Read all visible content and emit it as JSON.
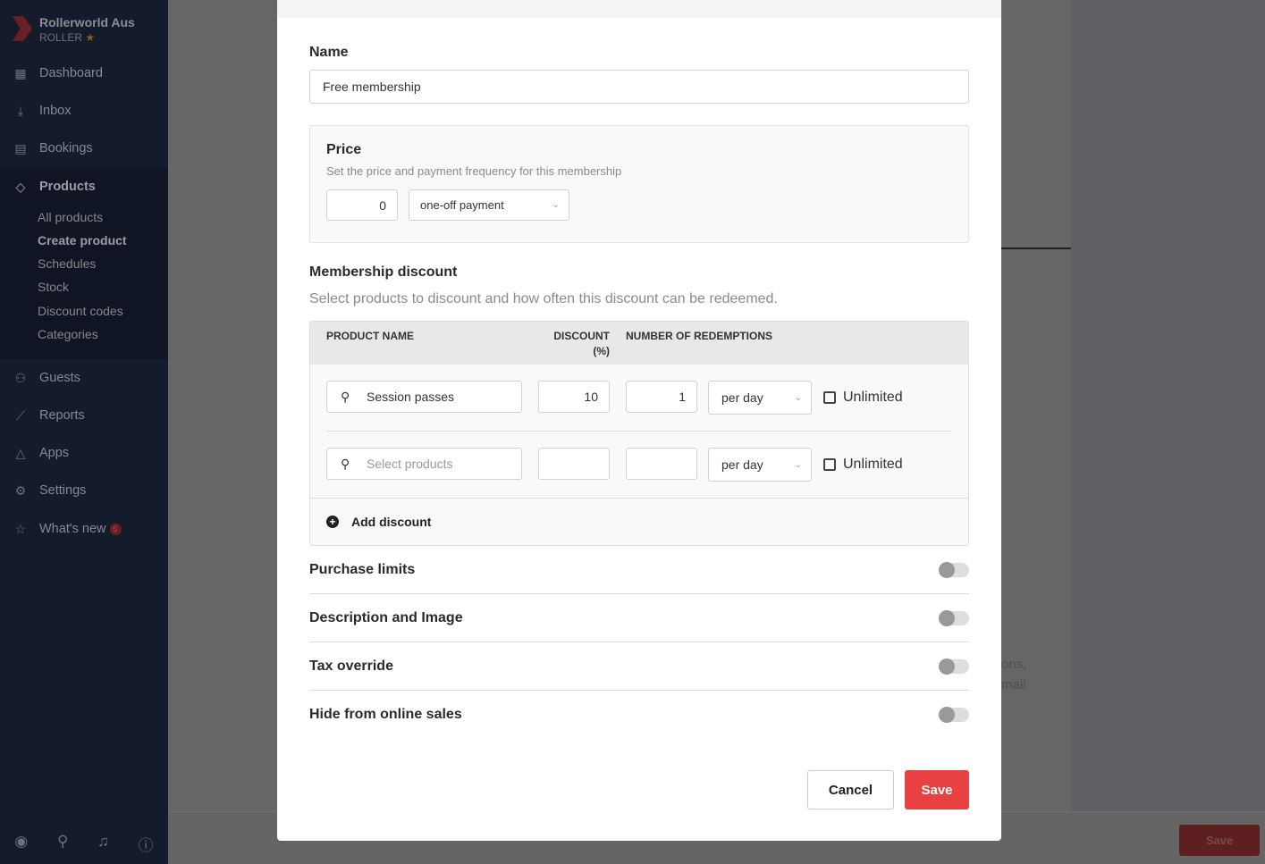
{
  "sidebar": {
    "brand": {
      "name": "Rollerworld Aus",
      "sub": "ROLLER"
    },
    "items": [
      {
        "label": "Dashboard",
        "icon": "dashboard-icon"
      },
      {
        "label": "Inbox",
        "icon": "inbox-icon"
      },
      {
        "label": "Bookings",
        "icon": "calendar-icon"
      },
      {
        "label": "Products",
        "icon": "tag-icon"
      },
      {
        "label": "Guests",
        "icon": "guests-icon"
      },
      {
        "label": "Reports",
        "icon": "chart-line-icon"
      },
      {
        "label": "Apps",
        "icon": "apps-icon"
      },
      {
        "label": "Settings",
        "icon": "gear-icon"
      },
      {
        "label": "What's new",
        "icon": "star-icon",
        "badge": "5"
      }
    ],
    "products_sub": [
      "All products",
      "Create product",
      "Schedules",
      "Stock",
      "Discount codes",
      "Categories"
    ],
    "active_sub": "Create product"
  },
  "background": {
    "save_label": "Save",
    "text_line1": "ons,",
    "text_line2": "mail"
  },
  "modal": {
    "name_label": "Name",
    "name_value": "Free membership",
    "price": {
      "title": "Price",
      "desc": "Set the price and payment frequency for this membership",
      "amount": "0",
      "frequency": "one-off payment"
    },
    "discount": {
      "title": "Membership discount",
      "desc": "Select products to discount and how often this discount can be redeemed.",
      "headers": {
        "product": "PRODUCT NAME",
        "discount": "DISCOUNT",
        "discount_unit": "(%)",
        "redemptions": "NUMBER OF REDEMPTIONS"
      },
      "rows": [
        {
          "product": "Session passes",
          "discount": "10",
          "redemptions": "1",
          "period": "per day",
          "unlimited_label": "Unlimited",
          "unlimited": false
        },
        {
          "product": "",
          "placeholder": "Select products",
          "discount": "",
          "redemptions": "",
          "period": "per day",
          "unlimited_label": "Unlimited",
          "unlimited": false
        }
      ],
      "add_label": "Add discount"
    },
    "toggles": [
      {
        "label": "Purchase limits",
        "on": false
      },
      {
        "label": "Description and Image",
        "on": false
      },
      {
        "label": "Tax override",
        "on": false
      },
      {
        "label": "Hide from online sales",
        "on": false
      }
    ],
    "cancel_label": "Cancel",
    "save_label": "Save"
  },
  "colors": {
    "accent": "#e84142",
    "sidebar": "#141b2b"
  }
}
